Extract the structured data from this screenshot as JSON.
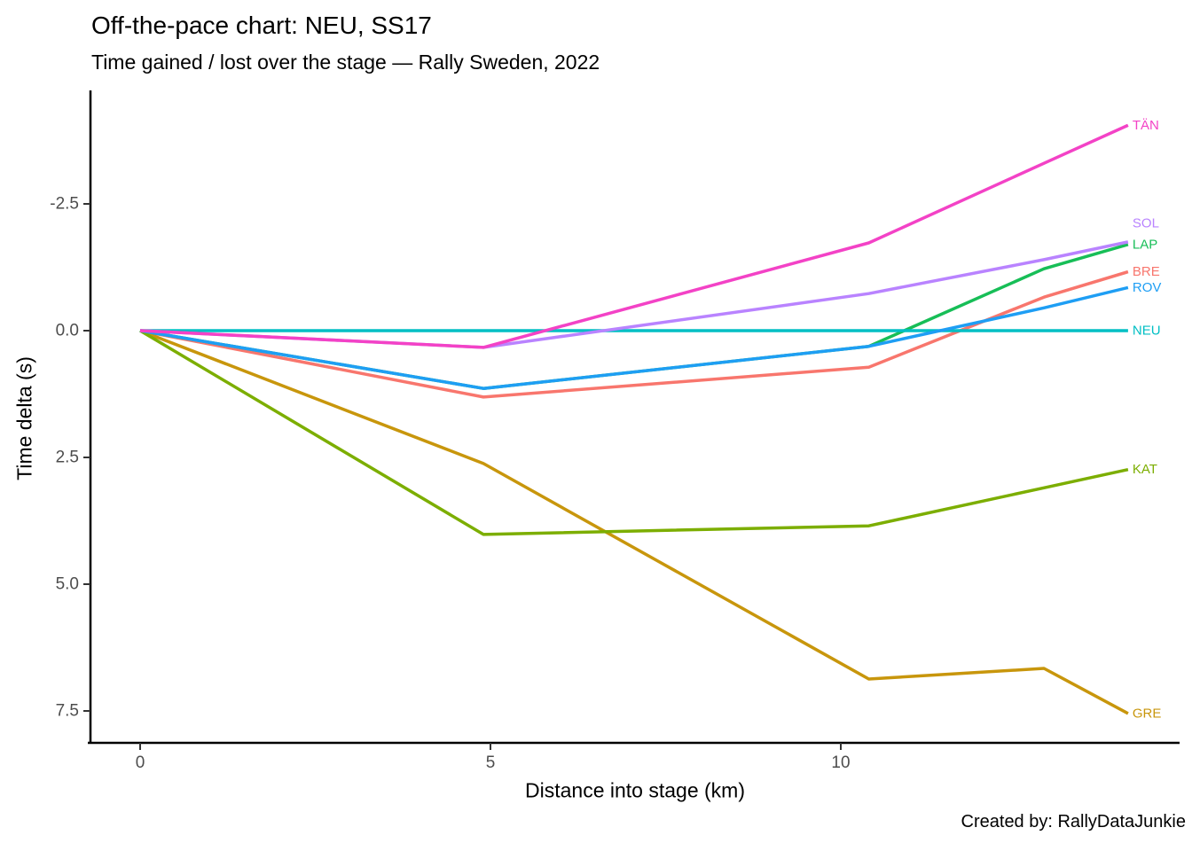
{
  "chart_data": {
    "type": "line",
    "title": "Off-the-pace chart: NEU, SS17",
    "subtitle": "Time gained / lost over the stage — Rally Sweden, 2022",
    "xlabel": "Distance into stage (km)",
    "ylabel": "Time delta (s)",
    "caption": "Created by: RallyDataJunkie",
    "y_axis_reversed": true,
    "grid": false,
    "legend_position": "right-of-line-ends",
    "x_ticks": [
      {
        "value": 0,
        "label": "0"
      },
      {
        "value": 5,
        "label": "5"
      },
      {
        "value": 10,
        "label": "10"
      }
    ],
    "y_ticks": [
      {
        "value": -2.5,
        "label": "-2.5"
      },
      {
        "value": 0.0,
        "label": "0.0"
      },
      {
        "value": 2.5,
        "label": "2.5"
      },
      {
        "value": 5.0,
        "label": "5.0"
      },
      {
        "value": 7.5,
        "label": "7.5"
      }
    ],
    "xlim": [
      -0.7,
      15.0
    ],
    "ylim": [
      -4.6,
      8.15
    ],
    "x_km": [
      0,
      4.9,
      10.4,
      12.9,
      14.1
    ],
    "series": [
      {
        "name": "BRE",
        "color": "#F8766D",
        "values": [
          0,
          1.31,
          0.72,
          -0.66,
          -1.16
        ]
      },
      {
        "name": "GRE",
        "color": "#C8960C",
        "values": [
          0,
          2.62,
          6.87,
          6.66,
          7.55
        ]
      },
      {
        "name": "KAT",
        "color": "#7CAE00",
        "values": [
          0,
          4.02,
          3.85,
          3.1,
          2.74
        ]
      },
      {
        "name": "LAP",
        "color": "#17BE57",
        "values": [
          0,
          1.14,
          0.31,
          -1.22,
          -1.7
        ]
      },
      {
        "name": "NEU",
        "color": "#00BFC4",
        "values": [
          0,
          0,
          0,
          0,
          0
        ]
      },
      {
        "name": "ROV",
        "color": "#1E9EF4",
        "values": [
          0,
          1.14,
          0.31,
          -0.45,
          -0.85
        ]
      },
      {
        "name": "SOL",
        "color": "#B983FF",
        "values": [
          0,
          0.33,
          -0.73,
          -1.4,
          -1.75
        ]
      },
      {
        "name": "TÄN",
        "color": "#F342C6",
        "values": [
          0,
          0.33,
          -1.73,
          -3.3,
          -4.05
        ]
      }
    ]
  }
}
